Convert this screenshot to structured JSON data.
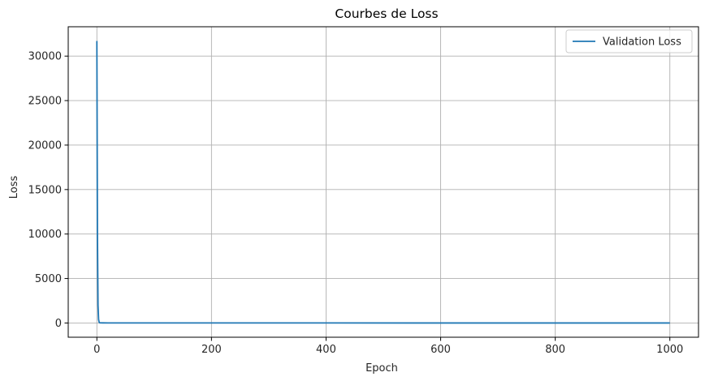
{
  "chart_data": {
    "type": "line",
    "title": "Courbes de Loss",
    "xlabel": "Epoch",
    "ylabel": "Loss",
    "xlim": [
      -50,
      1050
    ],
    "ylim": [
      -1600,
      33300
    ],
    "xticks": [
      0,
      200,
      400,
      600,
      800,
      1000
    ],
    "yticks": [
      0,
      5000,
      10000,
      15000,
      20000,
      25000,
      30000
    ],
    "xtick_labels": [
      "0",
      "200",
      "400",
      "600",
      "800",
      "1000"
    ],
    "ytick_labels": [
      "0",
      "5000",
      "10000",
      "15000",
      "20000",
      "25000",
      "30000"
    ],
    "grid": true,
    "legend_position": "top-right",
    "series": [
      {
        "name": "Validation Loss",
        "color": "#1f77b4",
        "x": [
          0,
          1,
          2,
          3,
          4,
          5,
          10,
          20,
          50,
          100,
          200,
          400,
          600,
          800,
          1000
        ],
        "y": [
          31700,
          10000,
          2000,
          400,
          80,
          20,
          10,
          8,
          5,
          4,
          3,
          3,
          2,
          2,
          2
        ]
      }
    ]
  }
}
